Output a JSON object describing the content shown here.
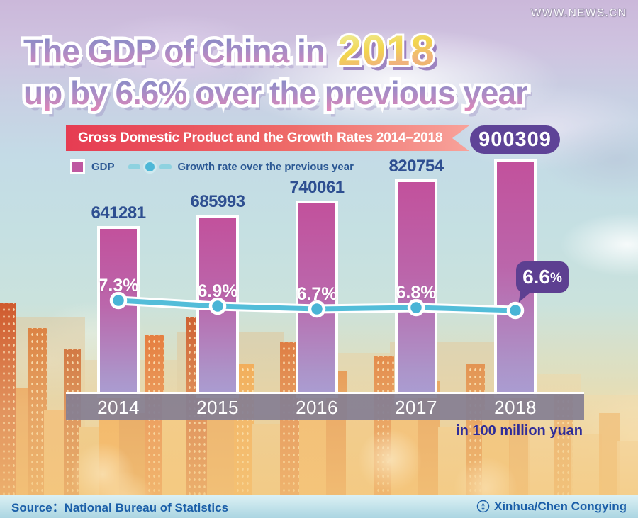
{
  "watermark": "WWW.NEWS.CN",
  "title": {
    "line1": "The GDP of China in",
    "year": "2018",
    "line2": "up by 6.6% over the previous year"
  },
  "banner": {
    "label": "Gross Domestic Product and the Growth Rates 2014–2018",
    "badge_value": "900309"
  },
  "legend": {
    "gdp_label": "GDP",
    "growth_label": "Growth rate over the previous year"
  },
  "unit_note": "in 100 million yuan",
  "footer": {
    "source": "Source：National Bureau of Statistics",
    "credit": "Xinhua/Chen Congying",
    "logo": "xinhua-globe-icon"
  },
  "colors": {
    "bar_top": "#c2519c",
    "bar_bottom": "#aa9dd2",
    "bar_border": "#ffffff",
    "growth_line": "#53bdd9",
    "point_fill": "#49b4d6",
    "badge_bg": "#5e4397",
    "bubble_bg": "#5d3f91",
    "ribbon_from": "#e63c52",
    "ribbon_to": "#f8a29a",
    "value_label": "#2e4f91",
    "legend_text": "#2b5894",
    "axis_band": "#857f92",
    "unit_note": "#2f2d99",
    "footer_text": "#1a5ea8",
    "title_gold": "#f2d44d"
  },
  "chart_data": {
    "type": "bar",
    "categories": [
      "2014",
      "2015",
      "2016",
      "2017",
      "2018"
    ],
    "series": [
      {
        "name": "GDP",
        "type": "bar",
        "unit": "100 million yuan",
        "values": [
          641281,
          685993,
          740061,
          820754,
          900309
        ]
      },
      {
        "name": "Growth rate over the previous year",
        "type": "line",
        "unit": "%",
        "values": [
          7.3,
          6.9,
          6.7,
          6.8,
          6.6
        ]
      }
    ],
    "title": "Gross Domestic Product and the Growth Rates 2014–2018",
    "xlabel": "",
    "ylabel": "in 100 million yuan",
    "ylim": [
      0,
      900309
    ],
    "grid": false,
    "legend_position": "top-left",
    "highlight": {
      "category": "2018",
      "gdp": 900309,
      "growth_pct": 6.6
    }
  }
}
